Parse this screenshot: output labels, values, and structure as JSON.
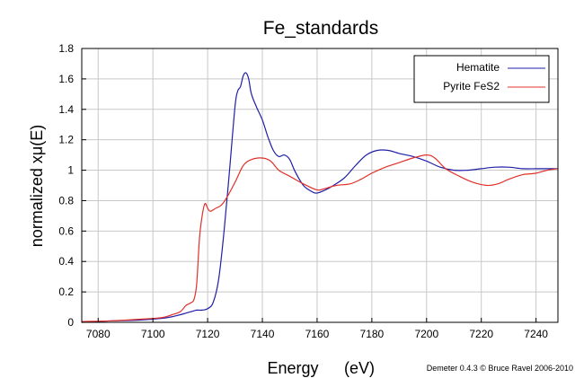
{
  "chart_data": {
    "type": "line",
    "title": "Fe_standards",
    "xlabel": "Energy",
    "xlabel_unit": "(eV)",
    "ylabel": "normalized xμ(E)",
    "xlim": [
      7074,
      7248
    ],
    "ylim": [
      0,
      1.8
    ],
    "xticks": [
      7080,
      7100,
      7120,
      7140,
      7160,
      7180,
      7200,
      7220,
      7240
    ],
    "yticks": [
      0,
      0.2,
      0.4,
      0.6,
      0.8,
      1,
      1.2,
      1.4,
      1.6,
      1.8
    ],
    "ytick_labels": [
      "0",
      "0.2",
      "0.4",
      "0.6",
      "0.8",
      "1",
      "1.2",
      "1.4",
      "1.6",
      "1.8"
    ],
    "grid": true,
    "legend_position": "top-right",
    "credit": "Demeter 0.4.3 © Bruce Ravel 2006-2010",
    "series": [
      {
        "name": "Hematite",
        "color": "#1f1fa8",
        "x": [
          7074,
          7085,
          7095,
          7105,
          7110,
          7112,
          7114,
          7116,
          7118,
          7120,
          7122,
          7124,
          7126,
          7128,
          7130,
          7131,
          7132,
          7133,
          7134,
          7135,
          7136,
          7138,
          7140,
          7142,
          7144,
          7146,
          7148,
          7150,
          7152,
          7155,
          7158,
          7160,
          7163,
          7166,
          7170,
          7174,
          7178,
          7182,
          7186,
          7190,
          7195,
          7200,
          7205,
          7210,
          7215,
          7220,
          7225,
          7230,
          7235,
          7240,
          7244,
          7248
        ],
        "y": [
          0.0,
          0.01,
          0.015,
          0.03,
          0.05,
          0.06,
          0.07,
          0.08,
          0.08,
          0.09,
          0.13,
          0.28,
          0.6,
          1.0,
          1.42,
          1.52,
          1.55,
          1.62,
          1.64,
          1.6,
          1.5,
          1.41,
          1.33,
          1.22,
          1.13,
          1.09,
          1.1,
          1.07,
          0.99,
          0.9,
          0.86,
          0.85,
          0.87,
          0.9,
          0.95,
          1.03,
          1.1,
          1.13,
          1.13,
          1.11,
          1.09,
          1.06,
          1.02,
          1.0,
          1.0,
          1.01,
          1.02,
          1.02,
          1.01,
          1.01,
          1.01,
          1.01
        ]
      },
      {
        "name": "Pyrite FeS2",
        "color": "#e0302a",
        "x": [
          7074,
          7085,
          7095,
          7103,
          7107,
          7110,
          7112,
          7113,
          7114,
          7115,
          7116,
          7117,
          7118,
          7119,
          7120,
          7121,
          7123,
          7125,
          7127,
          7130,
          7133,
          7136,
          7140,
          7143,
          7146,
          7150,
          7155,
          7160,
          7163,
          7167,
          7172,
          7176,
          7180,
          7185,
          7190,
          7195,
          7200,
          7203,
          7207,
          7212,
          7217,
          7222,
          7226,
          7230,
          7235,
          7240,
          7244,
          7248
        ],
        "y": [
          0.005,
          0.01,
          0.02,
          0.03,
          0.05,
          0.07,
          0.11,
          0.12,
          0.13,
          0.15,
          0.25,
          0.55,
          0.7,
          0.78,
          0.75,
          0.73,
          0.75,
          0.77,
          0.82,
          0.92,
          1.03,
          1.07,
          1.08,
          1.06,
          1.0,
          0.96,
          0.91,
          0.87,
          0.88,
          0.9,
          0.91,
          0.94,
          0.98,
          1.02,
          1.05,
          1.08,
          1.1,
          1.08,
          1.01,
          0.96,
          0.92,
          0.9,
          0.91,
          0.94,
          0.97,
          0.98,
          1.0,
          1.01
        ]
      }
    ]
  }
}
